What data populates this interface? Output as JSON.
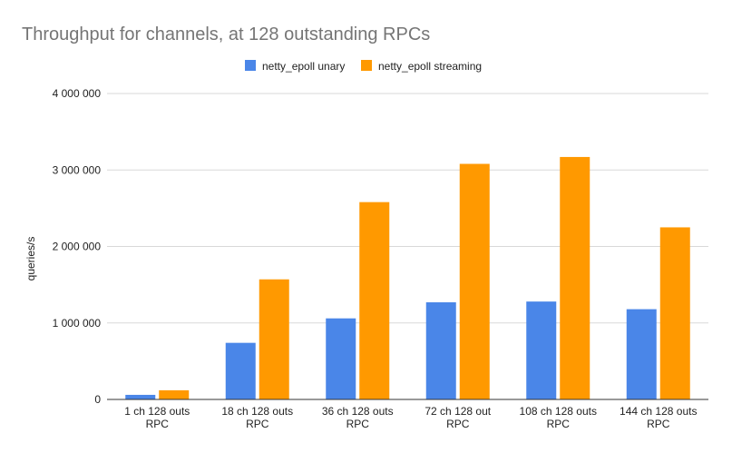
{
  "chart_data": {
    "type": "bar",
    "title": "Throughput for channels, at 128 outstanding RPCs",
    "xlabel": "",
    "ylabel": "queries/s",
    "ylim": [
      0,
      4000000
    ],
    "yticks": [
      0,
      1000000,
      2000000,
      3000000,
      4000000
    ],
    "ytick_labels": [
      "0",
      "1 000 000",
      "2 000 000",
      "3 000 000",
      "4 000 000"
    ],
    "categories": [
      [
        "1 ch 128 outs",
        "RPC"
      ],
      [
        "18 ch 128 outs",
        "RPC"
      ],
      [
        "36 ch 128 outs",
        "RPC"
      ],
      [
        "72 ch 128 out",
        "RPC"
      ],
      [
        "108 ch 128 outs",
        "RPC"
      ],
      [
        "144 ch 128 outs",
        "RPC"
      ]
    ],
    "series": [
      {
        "name": "netty_epoll unary",
        "color": "#4a86e8",
        "values": [
          60000,
          740000,
          1060000,
          1270000,
          1280000,
          1180000
        ]
      },
      {
        "name": "netty_epoll streaming",
        "color": "#ff9900",
        "values": [
          120000,
          1570000,
          2580000,
          3080000,
          3170000,
          2250000
        ]
      }
    ],
    "grid": true,
    "legend_position": "top"
  }
}
